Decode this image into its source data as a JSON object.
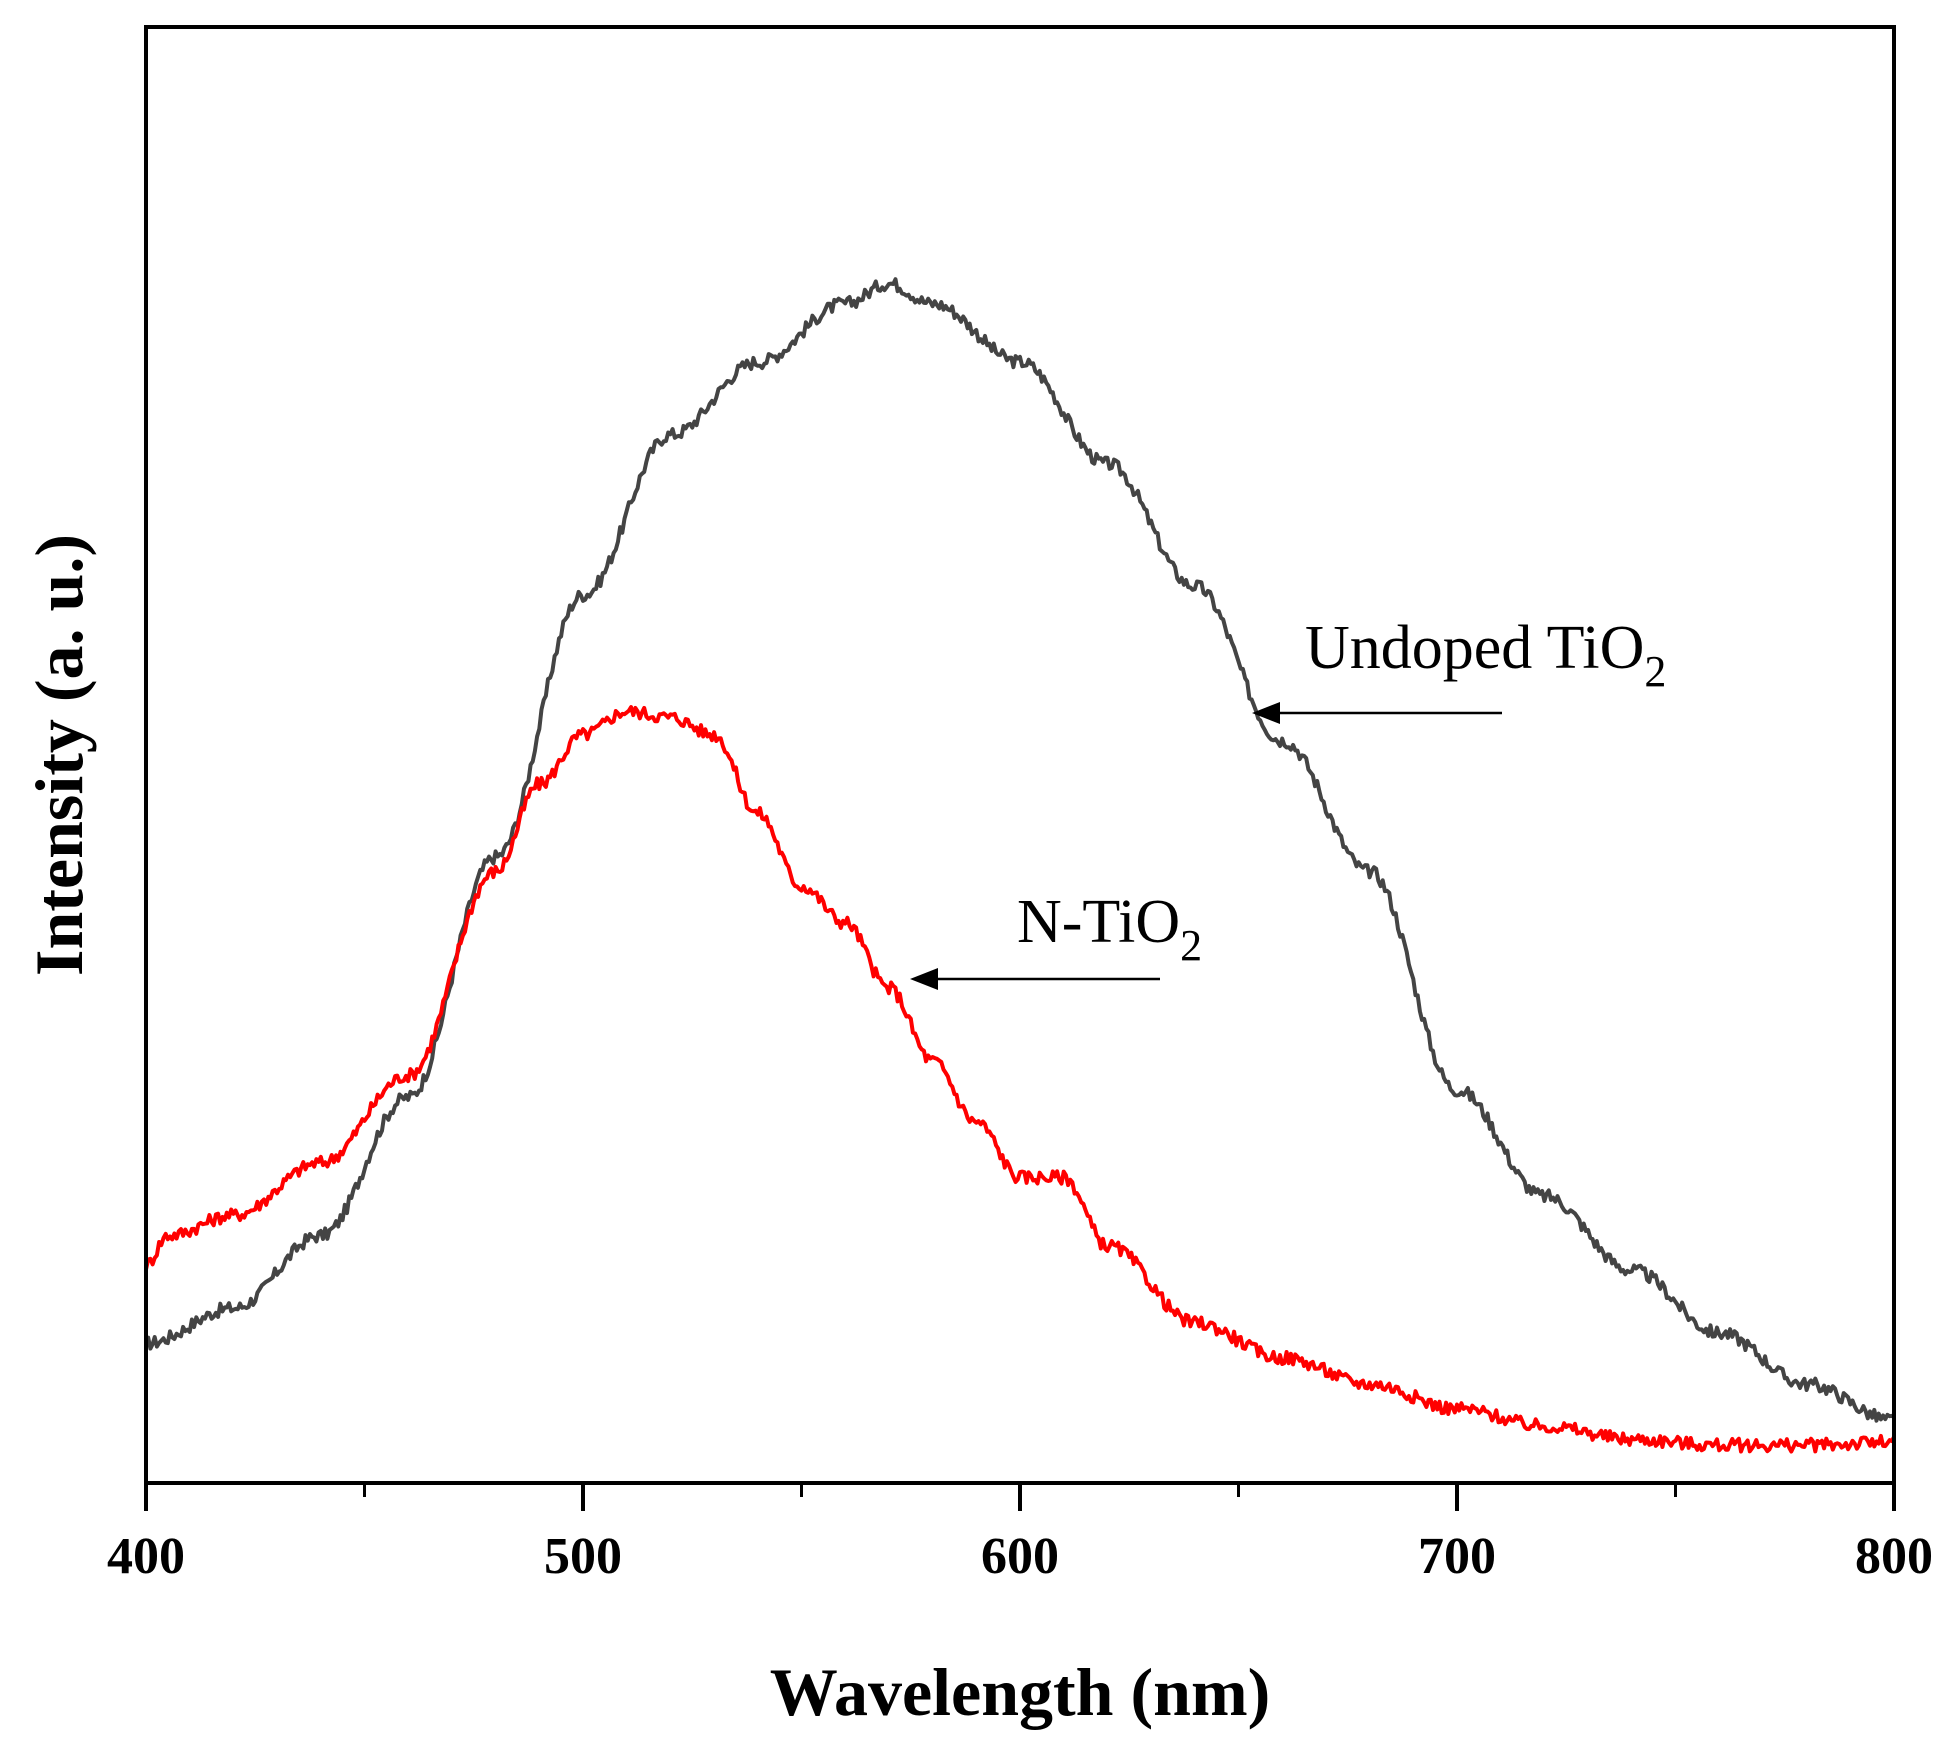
{
  "chart_data": {
    "type": "line",
    "title": "",
    "xlabel": "Wavelength (nm)",
    "ylabel": "Intensity (a. u.)",
    "xlim": [
      400,
      800
    ],
    "ylim": [
      0,
      100
    ],
    "xticks": [
      400,
      500,
      600,
      700,
      800
    ],
    "xticks_minor": [
      450,
      550,
      650,
      750
    ],
    "grid": false,
    "legend": "none (inline arrow annotations)",
    "series": [
      {
        "name": "Undoped TiO2",
        "color": "#444444",
        "x": [
          400,
          420,
          440,
          460,
          480,
          500,
          520,
          540,
          560,
          570,
          580,
          600,
          620,
          640,
          660,
          680,
          700,
          720,
          740,
          760,
          780,
          800
        ],
        "y": [
          9.6,
          12,
          17,
          26.5,
          43,
          61,
          72,
          77,
          81,
          82.4,
          81,
          77,
          70,
          61.6,
          51,
          42,
          27,
          19.7,
          14.6,
          10.3,
          6.8,
          4.3
        ]
      },
      {
        "name": "N-TiO2",
        "color": "#ff0000",
        "x": [
          400,
          405,
          420,
          440,
          460,
          480,
          490,
          500,
          510,
          520,
          530,
          540,
          550,
          560,
          570,
          580,
          590,
          600,
          610,
          620,
          640,
          660,
          680,
          700,
          720,
          740,
          760,
          780,
          800
        ],
        "y": [
          15,
          17,
          18.4,
          22,
          28,
          42,
          48,
          51.4,
          53,
          52.6,
          51.4,
          46,
          41,
          38.5,
          34,
          29,
          24.8,
          21,
          21,
          16.3,
          11,
          8.6,
          6.8,
          5.1,
          3.9,
          3,
          2.6,
          2.6,
          2.8
        ]
      }
    ],
    "annotations": [
      {
        "text": "Undoped TiO",
        "sub": "2",
        "target_series": "Undoped TiO2"
      },
      {
        "text": "N-TiO",
        "sub": "2",
        "target_series": "N-TiO2"
      }
    ]
  }
}
